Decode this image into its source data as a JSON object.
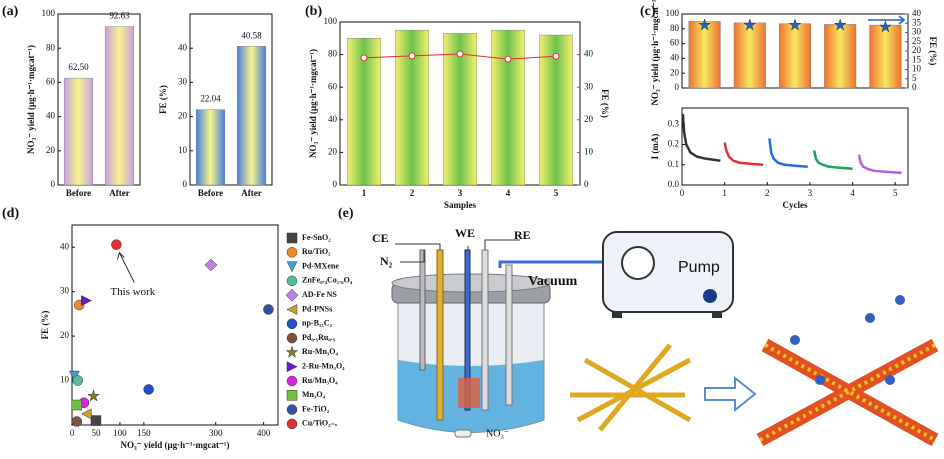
{
  "chart_data": [
    {
      "type": "bar",
      "panel": "(a)",
      "ylabel": "NO₃⁻ yield (μg·h⁻¹·mgcat⁻¹)",
      "categories": [
        "Before",
        "After"
      ],
      "values": [
        62.5,
        92.63
      ],
      "value_labels": [
        "62.50",
        "92.63"
      ],
      "color": [
        "#c9a0e6",
        "#f6f48a"
      ],
      "ylim": [
        0,
        100
      ],
      "yticks": [
        0,
        20,
        40,
        60,
        80,
        100
      ]
    },
    {
      "type": "bar",
      "ylabel": "FE (%)",
      "categories": [
        "Before",
        "After"
      ],
      "values": [
        22.04,
        40.58
      ],
      "value_labels": [
        "22.04",
        "40.58"
      ],
      "color": [
        "#4a7fe0",
        "#f6f48a"
      ],
      "ylim": [
        0,
        50
      ],
      "yticks": [
        0,
        10,
        20,
        30,
        40
      ]
    },
    {
      "type": "bar",
      "panel": "(b)",
      "xlabel": "Samples",
      "ylabel": "NO₃⁻ yield (μg·h⁻¹·mgcat⁻¹)",
      "y2label": "FE (%)",
      "categories": [
        "1",
        "2",
        "3",
        "4",
        "5"
      ],
      "values": [
        90,
        95,
        93,
        95,
        92
      ],
      "color": [
        "#f6f070",
        "#6cc24a"
      ],
      "ylim": [
        0,
        100
      ],
      "yticks": [
        0,
        20,
        40,
        60,
        80,
        100
      ],
      "y2lim": [
        0,
        50
      ],
      "y2ticks": [
        0,
        10,
        20,
        30,
        40
      ],
      "line": {
        "axis": "y2",
        "color": "#e03030",
        "values": [
          39,
          39.6,
          40.2,
          38.6,
          39.5
        ]
      }
    },
    {
      "type": "bar",
      "panel": "(c)",
      "ylabel": "NO₃⁻ yield (μg·h⁻¹·mgcat⁻¹)",
      "y2label": "FE (%)",
      "categories": [
        null,
        null,
        null,
        null,
        null
      ],
      "values": [
        90,
        88,
        87,
        86,
        85
      ],
      "color": [
        "#f07030",
        "#f6e860"
      ],
      "ylim": [
        0,
        100
      ],
      "yticks": [
        0,
        20,
        40,
        60,
        80,
        100
      ],
      "y2lim": [
        0,
        40
      ],
      "y2ticks": [
        0,
        5,
        10,
        15,
        20,
        25,
        30,
        35,
        40
      ],
      "points": {
        "axis": "y2",
        "marker": "star",
        "color": "#2060d0",
        "values": [
          34,
          34,
          34,
          34,
          33
        ]
      }
    },
    {
      "type": "line",
      "xlabel": "Cycles",
      "ylabel": "I (mA)",
      "xlim": [
        0,
        5.3
      ],
      "xticks": [
        0,
        1,
        2,
        3,
        4,
        5
      ],
      "ylim": [
        0,
        0.38
      ],
      "yticks": [
        {
          "value": 0,
          "label": "0.0"
        },
        0.1,
        0.2,
        0.3
      ],
      "series": [
        {
          "color": "#333333",
          "x": [
            0.02,
            0.05,
            0.1,
            0.2,
            0.35,
            0.55,
            0.9
          ],
          "values": [
            0.35,
            0.26,
            0.2,
            0.16,
            0.14,
            0.13,
            0.12
          ]
        },
        {
          "color": "#e03030",
          "x": [
            1.0,
            1.04,
            1.1,
            1.2,
            1.35,
            1.6,
            1.9
          ],
          "values": [
            0.21,
            0.17,
            0.14,
            0.12,
            0.11,
            0.105,
            0.1
          ]
        },
        {
          "color": "#2070e0",
          "x": [
            2.05,
            2.09,
            2.15,
            2.25,
            2.4,
            2.65,
            2.95
          ],
          "values": [
            0.23,
            0.16,
            0.13,
            0.11,
            0.1,
            0.095,
            0.09
          ]
        },
        {
          "color": "#20a060",
          "x": [
            3.1,
            3.14,
            3.2,
            3.3,
            3.45,
            3.7,
            4.0
          ],
          "values": [
            0.17,
            0.13,
            0.11,
            0.1,
            0.09,
            0.085,
            0.08
          ]
        },
        {
          "color": "#b060e0",
          "x": [
            4.15,
            4.19,
            4.25,
            4.35,
            4.5,
            4.8,
            5.15
          ],
          "values": [
            0.15,
            0.11,
            0.09,
            0.08,
            0.07,
            0.065,
            0.06
          ]
        }
      ]
    },
    {
      "type": "scatter",
      "panel": "(d)",
      "xlabel": "NO₃⁻ yield (μg·h⁻¹·mgcat⁻¹)",
      "ylabel": "FE (%)",
      "annotation": "This work",
      "xlim": [
        0,
        430
      ],
      "xticks": [
        0,
        50,
        100,
        150,
        300,
        400
      ],
      "ylim": [
        0,
        45
      ],
      "yticks": [
        10,
        20,
        30,
        40
      ],
      "series": [
        {
          "name": "Fe-SnO₂",
          "marker": "square",
          "color": "#444444",
          "x": [
            50
          ],
          "values": [
            1
          ]
        },
        {
          "name": "Ru/TiO₂",
          "marker": "circle",
          "color": "#f08a20",
          "x": [
            15
          ],
          "values": [
            27
          ]
        },
        {
          "name": "Pd-MXene",
          "marker": "tri-down",
          "color": "#40a0d0",
          "x": [
            5
          ],
          "values": [
            11
          ]
        },
        {
          "name": "ZnFe₀.₄Co₁.₆O₄",
          "marker": "circle",
          "color": "#58b8a0",
          "x": [
            12
          ],
          "values": [
            10
          ]
        },
        {
          "name": "AD-Fe NS",
          "marker": "diamond",
          "color": "#c080e0",
          "x": [
            290
          ],
          "values": [
            36
          ]
        },
        {
          "name": "Pd-PNSs",
          "marker": "tri-left",
          "color": "#c8a030",
          "x": [
            30
          ],
          "values": [
            2.5
          ]
        },
        {
          "name": "np-B₁₃C₂",
          "marker": "circle",
          "color": "#2050d0",
          "x": [
            160
          ],
          "values": [
            8
          ]
        },
        {
          "name": "Pd₀.₅Ru₀.₅",
          "marker": "circle",
          "color": "#805040",
          "x": [
            10
          ],
          "values": [
            0.8
          ]
        },
        {
          "name": "Ru-Mn₃O₄",
          "marker": "star",
          "color": "#808020",
          "x": [
            45
          ],
          "values": [
            6.5
          ]
        },
        {
          "name": "2-Ru-Mn₃O₄",
          "marker": "tri-right",
          "color": "#6020d0",
          "x": [
            30
          ],
          "values": [
            28
          ]
        },
        {
          "name": "Ru/Mn₃O₄",
          "marker": "circle",
          "color": "#e020e0",
          "x": [
            25
          ],
          "values": [
            5
          ]
        },
        {
          "name": "Mn₃O₄",
          "marker": "square",
          "color": "#70c040",
          "x": [
            10
          ],
          "values": [
            4.5
          ]
        },
        {
          "name": "Fe-TiO₂",
          "marker": "circle",
          "color": "#3050a0",
          "x": [
            410
          ],
          "values": [
            26
          ]
        },
        {
          "name": "Cu/TiO₂₋ₓ",
          "marker": "circle",
          "color": "#e03030",
          "x": [
            92.63
          ],
          "values": [
            40.58
          ]
        }
      ]
    }
  ],
  "diagram": {
    "panel": "(e)",
    "ce": "CE",
    "we": "WE",
    "re": "RE",
    "n2": "N₂",
    "vacuum": "Vacuum",
    "pump": "Pump",
    "ion": "NO₃⁻"
  }
}
